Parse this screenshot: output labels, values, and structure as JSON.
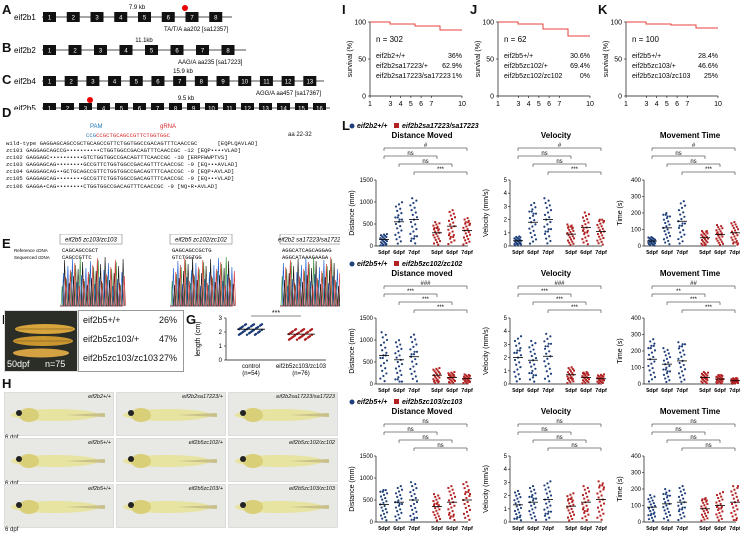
{
  "panel_letters": [
    "A",
    "B",
    "C",
    "D",
    "E",
    "F",
    "G",
    "H",
    "I",
    "J",
    "K",
    "L"
  ],
  "gene_structures": [
    {
      "gene": "eif2b1",
      "span": "7.9 kb",
      "exons": [
        "1",
        "2",
        "3",
        "4",
        "5",
        "6",
        "7",
        "8"
      ],
      "mutation": "TA/T/A aa202 [sa12357]"
    },
    {
      "gene": "eif2b2",
      "span": "11.1kb",
      "exons": [
        "1",
        "2",
        "3",
        "4",
        "5",
        "6",
        "7",
        "8"
      ],
      "mutation": "AAG/A aa235 [sa17223]"
    },
    {
      "gene": "eif2b4",
      "span": "15.9 kb",
      "exons": [
        "1",
        "2",
        "3",
        "4",
        "5",
        "6",
        "7",
        "8",
        "9",
        "10",
        "11",
        "12",
        "13"
      ],
      "mutation": "AGG/A aa457 [sa17367]"
    },
    {
      "gene": "eif2b5",
      "span": "9.5 kb",
      "exons": [
        "1",
        "2",
        "3",
        "4",
        "5",
        "6",
        "7",
        "8",
        "9",
        "10",
        "11",
        "12",
        "13",
        "14",
        "15",
        "16"
      ],
      "mutation": ""
    }
  ],
  "crispr": {
    "pam_label": "PAM",
    "grna_label": "gRNA",
    "seq_head": "CCGCTGCAGCCGTTCTGGTGGC",
    "aa_range": "aa 22-32",
    "lines": [
      "wild-type GAGGAGCAGCCGCTGCAGCCGTTCTGGTGGCCGACAGTTTCAACCGC      [EQPLQAVLAD]",
      "zc101 GAGGAGCAGCCG••••••••••CTGGTGGCCGACAGTTTCAACCGC -12 [EQP••••VLAD]",
      "zc102 GAGGAGC••••••••••GTCTGGTGGCCGACAGTTTCAACCGC -10 [ERPFWWPTVS]",
      "zc103 GAGGAGCAG••••••••GCCGTTCTGGTGGCCGACAGTTTCAACCGC -9 [EQ•••AVLAD]",
      "zc104 GAGGAGCAG••GCTGCAGCCGTTCTGGTGGCCGACAGTTTCAACCGC -9 [EQP•AVLAD]",
      "zc105 GAGGAGCAG••••••••GCCGTTCTGGTGGCCGACAGTTTCAACCGC -9 [EQ•••VLAD]",
      "zc106 GAGGA•CAG••••••••CTGGTGGCCGACAGTTTCAACCGC -9 [NQ•R•AVLAD]"
    ]
  },
  "chromatograms": [
    {
      "title": "eif2b5 zc103/zc103",
      "ref": "CAGCAGCCGCT",
      "seq": "CAGCCGTTC"
    },
    {
      "title": "eif2b5 zc102/zc102",
      "ref": "GAGCAGCCGCTG",
      "seq": "GTCTGGTGG"
    },
    {
      "title": "eif2b2 sa17223/sa17223",
      "ref": "AGGCATCAGCAGGAG",
      "seq": "AGGCATAAAGAAGA"
    }
  ],
  "e_side_labels": [
    "Reference cDNA",
    "Sequenced cDNA"
  ],
  "fish_photo": {
    "age": "50dpf",
    "n": "n=75"
  },
  "genotype_table": [
    {
      "genotype": "eif2b5+/+",
      "pct": "26%"
    },
    {
      "genotype": "eif2b5zc103/+",
      "pct": "47%"
    },
    {
      "genotype": "eif2b5zc103/zc103",
      "pct": "27%"
    }
  ],
  "panel_g": {
    "ylabel": "length (cm)",
    "categories": [
      "control",
      "eif2b5zc103/zc103"
    ],
    "ns": [
      "(n=54)",
      "(n=76)"
    ],
    "sig": "***",
    "ylim": [
      0,
      3
    ],
    "ticks": [
      "0",
      "1",
      "2",
      "3"
    ]
  },
  "larvae": [
    {
      "age": "6 dpf",
      "labels": [
        "eif2b2+/+",
        "eif2b2sa17223/+",
        "eif2b2sa17223/sa17223"
      ]
    },
    {
      "age": "6 dpf",
      "labels": [
        "eif2b5+/+",
        "eif2b5zc102/+",
        "eif2b5zc102/zc102"
      ]
    },
    {
      "age": "6 dpf",
      "labels": [
        "eif2b5+/+",
        "eif2b5zc103/+",
        "eif2b5zc103/zc103"
      ]
    }
  ],
  "survival": [
    {
      "n": "n = 302",
      "rows": [
        [
          "eif2b2+/+",
          "36%"
        ],
        [
          "eif2b2sa17223/+",
          "62.9%"
        ],
        [
          "eif2b2sa17223/sa17223",
          "1%"
        ]
      ]
    },
    {
      "n": "n = 62",
      "rows": [
        [
          "eif2b5+/+",
          "30.6%"
        ],
        [
          "eif2b5zc102/+",
          "69.4%"
        ],
        [
          "eif2b5zc102/zc102",
          "0%"
        ]
      ]
    },
    {
      "n": "n = 100",
      "rows": [
        [
          "eif2b5+/+",
          "28.4%"
        ],
        [
          "eif2b5zc103/+",
          "46.6%"
        ],
        [
          "eif2b5zc103/zc103",
          "25%"
        ]
      ]
    }
  ],
  "survival_axes": {
    "ylabel": "survival (%)",
    "xticks": [
      "1",
      "3",
      "4",
      "5",
      "6",
      "7",
      "10"
    ],
    "yticks": [
      "0",
      "50",
      "100"
    ]
  },
  "chart_data": [
    {
      "type": "scatter",
      "title": "Distance Moved",
      "group": "eif2b2",
      "ylabel": "Distance (mm)",
      "ylim": [
        0,
        1500
      ],
      "yticks": [
        "0",
        "500",
        "1000",
        "1500"
      ],
      "categories": [
        "5dpf",
        "6dpf",
        "7dpf",
        "5dpf",
        "6dpf",
        "7dpf"
      ],
      "series": [
        {
          "name": "eif2b2+/+",
          "means": [
            150,
            550,
            600
          ]
        },
        {
          "name": "eif2b2sa17223/sa17223",
          "means": [
            300,
            450,
            350
          ]
        }
      ],
      "sig": [
        "#",
        "ns",
        "ns",
        "***"
      ]
    },
    {
      "type": "scatter",
      "title": "Velocity",
      "group": "eif2b2",
      "ylabel": "Velocity (mm/s)",
      "ylim": [
        0,
        5
      ],
      "yticks": [
        "0",
        "1",
        "2",
        "3",
        "4",
        "5"
      ],
      "categories": [
        "5dpf",
        "6dpf",
        "7dpf",
        "5dpf",
        "6dpf",
        "7dpf"
      ],
      "series": [
        {
          "name": "eif2b2+/+",
          "means": [
            0.4,
            1.8,
            2.0
          ]
        },
        {
          "name": "eif2b2sa17223/sa17223",
          "means": [
            0.9,
            1.4,
            1.1
          ]
        }
      ],
      "sig": [
        "#",
        "ns",
        "ns",
        "***"
      ]
    },
    {
      "type": "scatter",
      "title": "Movement Time",
      "group": "eif2b2",
      "ylabel": "Time (s)",
      "ylim": [
        0,
        400
      ],
      "yticks": [
        "0",
        "100",
        "200",
        "300",
        "400"
      ],
      "categories": [
        "5dpf",
        "6dpf",
        "7dpf",
        "5dpf",
        "6dpf",
        "7dpf"
      ],
      "series": [
        {
          "name": "eif2b2+/+",
          "means": [
            30,
            110,
            150
          ]
        },
        {
          "name": "eif2b2sa17223/sa17223",
          "means": [
            50,
            70,
            80
          ]
        }
      ],
      "sig": [
        "#",
        "ns",
        "ns",
        "***"
      ]
    },
    {
      "type": "scatter",
      "title": "Distance moved",
      "group": "zc102",
      "ylabel": "Distance (mm)",
      "ylim": [
        0,
        1500
      ],
      "yticks": [
        "0",
        "500",
        "1000",
        "1500"
      ],
      "categories": [
        "5dpf",
        "6dpf",
        "7dpf",
        "5dpf",
        "6dpf",
        "7dpf"
      ],
      "series": [
        {
          "name": "eif2b5+/+",
          "means": [
            650,
            550,
            620
          ]
        },
        {
          "name": "eif2b5zc102/zc102",
          "means": [
            200,
            150,
            120
          ]
        }
      ],
      "sig": [
        "###",
        "***",
        "***",
        "***"
      ]
    },
    {
      "type": "scatter",
      "title": "Velocity",
      "group": "zc102",
      "ylabel": "Velocity (mm/s)",
      "ylim": [
        0,
        5
      ],
      "yticks": [
        "0",
        "1",
        "2",
        "3",
        "4",
        "5"
      ],
      "categories": [
        "5dpf",
        "6dpf",
        "7dpf",
        "5dpf",
        "6dpf",
        "7dpf"
      ],
      "series": [
        {
          "name": "eif2b5+/+",
          "means": [
            2.0,
            1.8,
            2.1
          ]
        },
        {
          "name": "eif2b5zc102/zc102",
          "means": [
            0.7,
            0.5,
            0.4
          ]
        }
      ],
      "sig": [
        "###",
        "***",
        "***",
        "***"
      ]
    },
    {
      "type": "scatter",
      "title": "Movement Time",
      "group": "zc102",
      "ylabel": "Time (s)",
      "ylim": [
        0,
        400
      ],
      "yticks": [
        "0",
        "100",
        "200",
        "300",
        "400"
      ],
      "categories": [
        "5dpf",
        "6dpf",
        "7dpf",
        "5dpf",
        "6dpf",
        "7dpf"
      ],
      "series": [
        {
          "name": "eif2b5+/+",
          "means": [
            150,
            120,
            140
          ]
        },
        {
          "name": "eif2b5zc102/zc102",
          "means": [
            40,
            30,
            20
          ]
        }
      ],
      "sig": [
        "##",
        "**",
        "***",
        "***"
      ]
    },
    {
      "type": "scatter",
      "title": "Distance Moved",
      "group": "zc103",
      "ylabel": "Distance (mm)",
      "ylim": [
        0,
        1500
      ],
      "yticks": [
        "0",
        "500",
        "1000",
        "1500"
      ],
      "categories": [
        "5dpf",
        "6dpf",
        "7dpf",
        "5dpf",
        "6dpf",
        "7dpf"
      ],
      "series": [
        {
          "name": "eif2b5+/+",
          "means": [
            400,
            450,
            500
          ]
        },
        {
          "name": "eif2b5zc103/zc103",
          "means": [
            350,
            450,
            500
          ]
        }
      ],
      "sig": [
        "ns",
        "ns",
        "ns",
        "ns"
      ]
    },
    {
      "type": "scatter",
      "title": "Velocity",
      "group": "zc103",
      "ylabel": "Velocity (mm/s)",
      "ylim": [
        0,
        5
      ],
      "yticks": [
        "0",
        "1",
        "2",
        "3",
        "4",
        "5"
      ],
      "categories": [
        "5dpf",
        "6dpf",
        "7dpf",
        "5dpf",
        "6dpf",
        "7dpf"
      ],
      "series": [
        {
          "name": "eif2b5+/+",
          "means": [
            1.3,
            1.5,
            1.7
          ]
        },
        {
          "name": "eif2b5zc103/zc103",
          "means": [
            1.2,
            1.5,
            1.7
          ]
        }
      ],
      "sig": [
        "ns",
        "ns",
        "ns",
        "ns"
      ]
    },
    {
      "type": "scatter",
      "title": "Movement Time",
      "group": "zc103",
      "ylabel": "Time (s)",
      "ylim": [
        0,
        400
      ],
      "yticks": [
        "0",
        "100",
        "200",
        "300",
        "400"
      ],
      "categories": [
        "5dpf",
        "6dpf",
        "7dpf",
        "5dpf",
        "6dpf",
        "7dpf"
      ],
      "series": [
        {
          "name": "eif2b5+/+",
          "means": [
            90,
            110,
            120
          ]
        },
        {
          "name": "eif2b5zc103/zc103",
          "means": [
            80,
            100,
            120
          ]
        }
      ],
      "sig": [
        "ns",
        "ns",
        "ns",
        "ns"
      ]
    }
  ],
  "l_legends": [
    [
      "eif2b2+/+",
      "eif2b2sa17223/sa17223"
    ],
    [
      "eif2b5+/+",
      "eif2b5zc102/zc102"
    ],
    [
      "eif2b5+/+",
      "eif2b5zc103/zc103"
    ]
  ],
  "colors": {
    "wt": "#1f3f7a",
    "mut": "#b22222",
    "exon": "#111111",
    "survival": "#e8413c"
  }
}
